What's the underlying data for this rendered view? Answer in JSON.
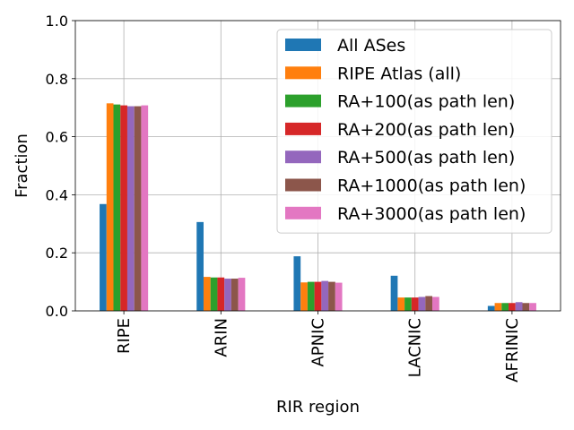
{
  "chart_data": {
    "type": "bar",
    "xlabel": "RIR region",
    "ylabel": "Fraction",
    "ylim": [
      0,
      1.0
    ],
    "yticks": [
      "0.0",
      "0.2",
      "0.4",
      "0.6",
      "0.8",
      "1.0"
    ],
    "grid": true,
    "legend_position": "top-right",
    "categories": [
      "RIPE",
      "ARIN",
      "APNIC",
      "LACNIC",
      "AFRINIC"
    ],
    "series": [
      {
        "name": "All ASes",
        "color": "#1f77b4",
        "values": [
          0.368,
          0.306,
          0.188,
          0.121,
          0.017
        ]
      },
      {
        "name": "RIPE Atlas (all)",
        "color": "#ff7f0e",
        "values": [
          0.715,
          0.117,
          0.098,
          0.046,
          0.027
        ]
      },
      {
        "name": "RA+100(as path len)",
        "color": "#2ca02c",
        "values": [
          0.711,
          0.115,
          0.1,
          0.046,
          0.027
        ]
      },
      {
        "name": "RA+200(as path len)",
        "color": "#d62728",
        "values": [
          0.708,
          0.115,
          0.1,
          0.046,
          0.027
        ]
      },
      {
        "name": "RA+500(as path len)",
        "color": "#9467bd",
        "values": [
          0.705,
          0.111,
          0.103,
          0.048,
          0.03
        ]
      },
      {
        "name": "RA+1000(as path len)",
        "color": "#8c564b",
        "values": [
          0.705,
          0.111,
          0.1,
          0.051,
          0.027
        ]
      },
      {
        "name": "RA+3000(as path len)",
        "color": "#e377c2",
        "values": [
          0.708,
          0.114,
          0.097,
          0.048,
          0.027
        ]
      }
    ]
  }
}
